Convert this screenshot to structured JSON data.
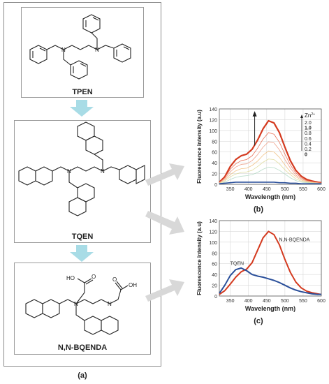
{
  "molecules": [
    {
      "name": "TPEN"
    },
    {
      "name": "TQEN"
    },
    {
      "name": "N,N-BQENDA",
      "groups": [
        "HO",
        "O",
        "OH",
        "O"
      ]
    }
  ],
  "panel_labels": {
    "a": "(a)",
    "b": "(b)",
    "c": "(c)"
  },
  "colors": {
    "arrow_fill": "#a8dce6",
    "red_series": "#d43a1f",
    "blue_series": "#2a4f9a"
  },
  "chart_data": [
    {
      "type": "line",
      "xlabel": "Wavelength (nm)",
      "ylabel": "Fluorescence intensity (a.u)",
      "xlim": [
        320,
        600
      ],
      "ylim": [
        0,
        140
      ],
      "xticks": [
        350,
        400,
        450,
        500,
        550,
        600
      ],
      "yticks": [
        0,
        20,
        40,
        60,
        80,
        100,
        120,
        140
      ],
      "legend_title": "Zn",
      "legend_superscript": "2+",
      "legend_entries": [
        "2.0",
        "1.0",
        "0.8",
        "0.6",
        "0.4",
        "0.2",
        "0"
      ],
      "x": [
        320,
        335,
        350,
        365,
        380,
        395,
        410,
        425,
        440,
        455,
        470,
        485,
        500,
        515,
        530,
        545,
        560,
        575,
        590,
        600
      ],
      "series": [
        {
          "name": "2.0",
          "color": "#d43a1f",
          "values": [
            4,
            14,
            33,
            46,
            53,
            56,
            65,
            82,
            103,
            118,
            114,
            96,
            69,
            44,
            26,
            15,
            9,
            6,
            4,
            3
          ]
        },
        {
          "name": "1.0",
          "color": "#e8735a",
          "values": [
            3,
            12,
            28,
            38,
            44,
            46,
            53,
            67,
            84,
            96,
            93,
            78,
            56,
            36,
            21,
            12,
            7,
            5,
            3,
            2
          ]
        },
        {
          "name": "0.8",
          "color": "#efa58f",
          "values": [
            3,
            10,
            23,
            32,
            37,
            38,
            44,
            55,
            69,
            79,
            77,
            64,
            46,
            30,
            17,
            10,
            6,
            4,
            3,
            2
          ]
        },
        {
          "name": "0.6",
          "color": "#f2c48a",
          "values": [
            2,
            8,
            18,
            25,
            29,
            30,
            35,
            43,
            54,
            62,
            60,
            50,
            36,
            23,
            14,
            8,
            5,
            3,
            2,
            2
          ]
        },
        {
          "name": "0.4",
          "color": "#e0dca0",
          "values": [
            2,
            6,
            14,
            19,
            22,
            23,
            26,
            33,
            41,
            47,
            46,
            38,
            27,
            18,
            10,
            6,
            4,
            3,
            2,
            1
          ]
        },
        {
          "name": "0.2",
          "color": "#b8dcc8",
          "values": [
            1,
            4,
            9,
            13,
            15,
            16,
            18,
            22,
            28,
            32,
            31,
            26,
            19,
            12,
            7,
            4,
            3,
            2,
            1,
            1
          ]
        },
        {
          "name": "0",
          "color": "#2a4f9a",
          "values": [
            1,
            2,
            3,
            4,
            4,
            4,
            4,
            4,
            4,
            4,
            4,
            3,
            3,
            2,
            2,
            1,
            1,
            1,
            1,
            1
          ]
        }
      ]
    },
    {
      "type": "line",
      "xlabel": "Wavelength (nm)",
      "ylabel": "Fluorescence intensity (a.u)",
      "xlim": [
        320,
        600
      ],
      "ylim": [
        0,
        140
      ],
      "xticks": [
        350,
        400,
        450,
        500,
        550,
        600
      ],
      "yticks": [
        0,
        20,
        40,
        60,
        80,
        100,
        120,
        140
      ],
      "x": [
        320,
        335,
        350,
        365,
        380,
        395,
        410,
        425,
        440,
        455,
        470,
        485,
        500,
        515,
        530,
        545,
        560,
        575,
        590,
        600
      ],
      "series": [
        {
          "name": "N,N-BQENDA",
          "color": "#d43a1f",
          "values": [
            3,
            10,
            22,
            35,
            45,
            50,
            62,
            85,
            108,
            120,
            114,
            95,
            68,
            44,
            26,
            15,
            9,
            6,
            4,
            3
          ]
        },
        {
          "name": "TQEN",
          "color": "#2a4f9a",
          "values": [
            5,
            20,
            38,
            49,
            52,
            47,
            40,
            37,
            35,
            32,
            29,
            25,
            20,
            15,
            11,
            8,
            6,
            4,
            3,
            3
          ]
        }
      ]
    }
  ]
}
